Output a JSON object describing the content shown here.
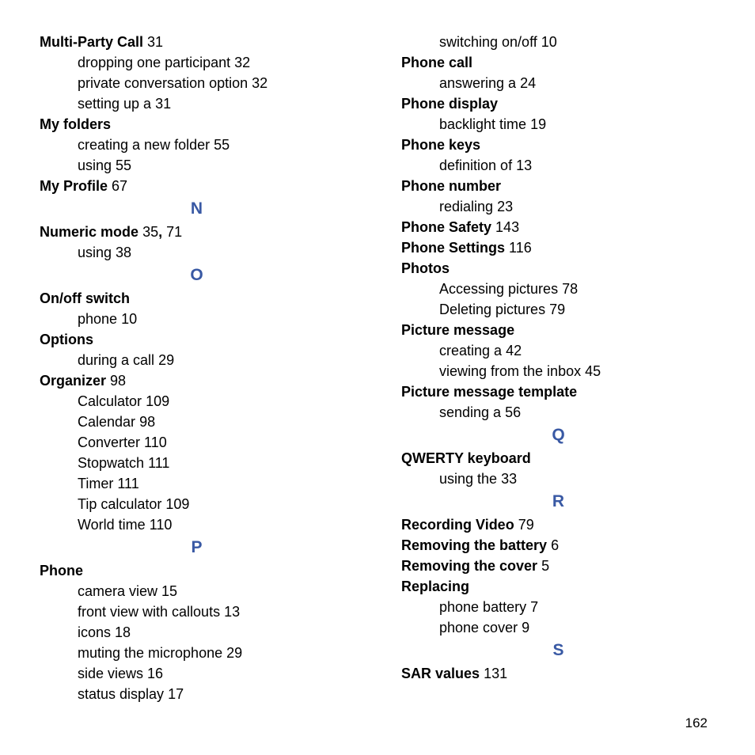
{
  "colors": {
    "letter": "#3959a4",
    "text": "#000000",
    "background": "#ffffff"
  },
  "page_number": "162",
  "left": {
    "multi_party_call": {
      "label": "Multi-Party Call",
      "page": "31"
    },
    "mpc_drop": {
      "text": "dropping one participant",
      "page": "32"
    },
    "mpc_private": {
      "text": "private conversation option",
      "page": "32"
    },
    "mpc_setup": {
      "text": "setting up a",
      "page": "31"
    },
    "my_folders": {
      "label": "My folders"
    },
    "mf_create": {
      "text": "creating a new folder",
      "page": "55"
    },
    "mf_using": {
      "text": "using",
      "page": "55"
    },
    "my_profile": {
      "label": "My Profile",
      "page": "67"
    },
    "letter_n": "N",
    "numeric_mode": {
      "label": "Numeric mode",
      "page1": "35",
      "page2": "71"
    },
    "nm_using": {
      "text": "using",
      "page": "38"
    },
    "letter_o": "O",
    "onoff": {
      "label": "On/off switch"
    },
    "onoff_phone": {
      "text": "phone",
      "page": "10"
    },
    "options": {
      "label": "Options"
    },
    "opt_call": {
      "text": "during a call",
      "page": "29"
    },
    "organizer": {
      "label": "Organizer",
      "page": "98"
    },
    "org_calc": {
      "text": "Calculator",
      "page": "109"
    },
    "org_cal": {
      "text": "Calendar",
      "page": "98"
    },
    "org_conv": {
      "text": "Converter",
      "page": "110"
    },
    "org_stop": {
      "text": "Stopwatch",
      "page": "111"
    },
    "org_timer": {
      "text": "Timer",
      "page": "111"
    },
    "org_tip": {
      "text": "Tip calculator",
      "page": "109"
    },
    "org_world": {
      "text": "World time",
      "page": "110"
    },
    "letter_p": "P",
    "phone": {
      "label": "Phone"
    },
    "ph_camera": {
      "text": "camera view",
      "page": "15"
    },
    "ph_front": {
      "text": "front view with callouts",
      "page": "13"
    },
    "ph_icons": {
      "text": "icons",
      "page": "18"
    },
    "ph_mute": {
      "text": "muting the microphone",
      "page": "29"
    },
    "ph_side": {
      "text": "side views",
      "page": "16"
    },
    "ph_status": {
      "text": "status display",
      "page": "17"
    }
  },
  "right": {
    "ph_switch": {
      "text": "switching on/off",
      "page": "10"
    },
    "phone_call": {
      "label": "Phone call"
    },
    "pc_answer": {
      "text": "answering a",
      "page": "24"
    },
    "phone_display": {
      "label": "Phone display"
    },
    "pd_backlight": {
      "text": "backlight time",
      "page": "19"
    },
    "phone_keys": {
      "label": "Phone keys"
    },
    "pk_def": {
      "text": "definition of",
      "page": "13"
    },
    "phone_number": {
      "label": "Phone number"
    },
    "pn_redial": {
      "text": "redialing",
      "page": "23"
    },
    "phone_safety": {
      "label": "Phone Safety",
      "page": "143"
    },
    "phone_settings": {
      "label": "Phone Settings",
      "page": "116"
    },
    "photos": {
      "label": "Photos"
    },
    "pht_access": {
      "text": "Accessing pictures",
      "page": "78"
    },
    "pht_delete": {
      "text": "Deleting pictures",
      "page": "79"
    },
    "pic_msg": {
      "label": "Picture message"
    },
    "pm_create": {
      "text": "creating a",
      "page": "42"
    },
    "pm_view": {
      "text": "viewing from the inbox",
      "page": "45"
    },
    "pic_tmpl": {
      "label": "Picture message template"
    },
    "pmt_send": {
      "text": "sending a",
      "page": "56"
    },
    "letter_q": "Q",
    "qwerty": {
      "label": "QWERTY keyboard"
    },
    "qw_using": {
      "text": "using the",
      "page": "33"
    },
    "letter_r": "R",
    "rec_video": {
      "label": "Recording Video",
      "page": "79"
    },
    "rem_batt": {
      "label": "Removing the battery",
      "page": "6"
    },
    "rem_cover": {
      "label": "Removing the cover",
      "page": "5"
    },
    "replacing": {
      "label": "Replacing"
    },
    "rep_batt": {
      "text": "phone battery",
      "page": "7"
    },
    "rep_cover": {
      "text": "phone cover",
      "page": "9"
    },
    "letter_s": "S",
    "sar": {
      "label": "SAR values",
      "page": "131"
    }
  }
}
